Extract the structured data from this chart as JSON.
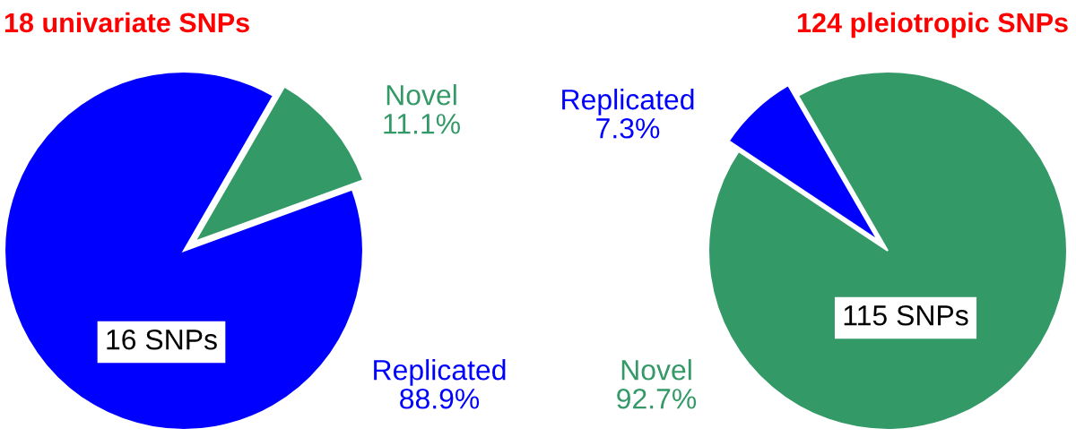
{
  "chart_data": [
    {
      "type": "pie",
      "title": "18 univariate SNPs",
      "categories": [
        "Replicated",
        "Novel"
      ],
      "values": [
        88.9,
        11.1
      ],
      "value_labels": [
        "88.9%",
        "11.1%"
      ],
      "colors": [
        "#0000ff",
        "#339966"
      ],
      "annotations": [
        "16 SNPs"
      ]
    },
    {
      "type": "pie",
      "title": "124 pleiotropic SNPs",
      "categories": [
        "Replicated",
        "Novel"
      ],
      "values": [
        7.3,
        92.7
      ],
      "value_labels": [
        "7.3%",
        "92.7%"
      ],
      "colors": [
        "#0000ff",
        "#339966"
      ],
      "annotations": [
        "115 SNPs"
      ]
    }
  ]
}
